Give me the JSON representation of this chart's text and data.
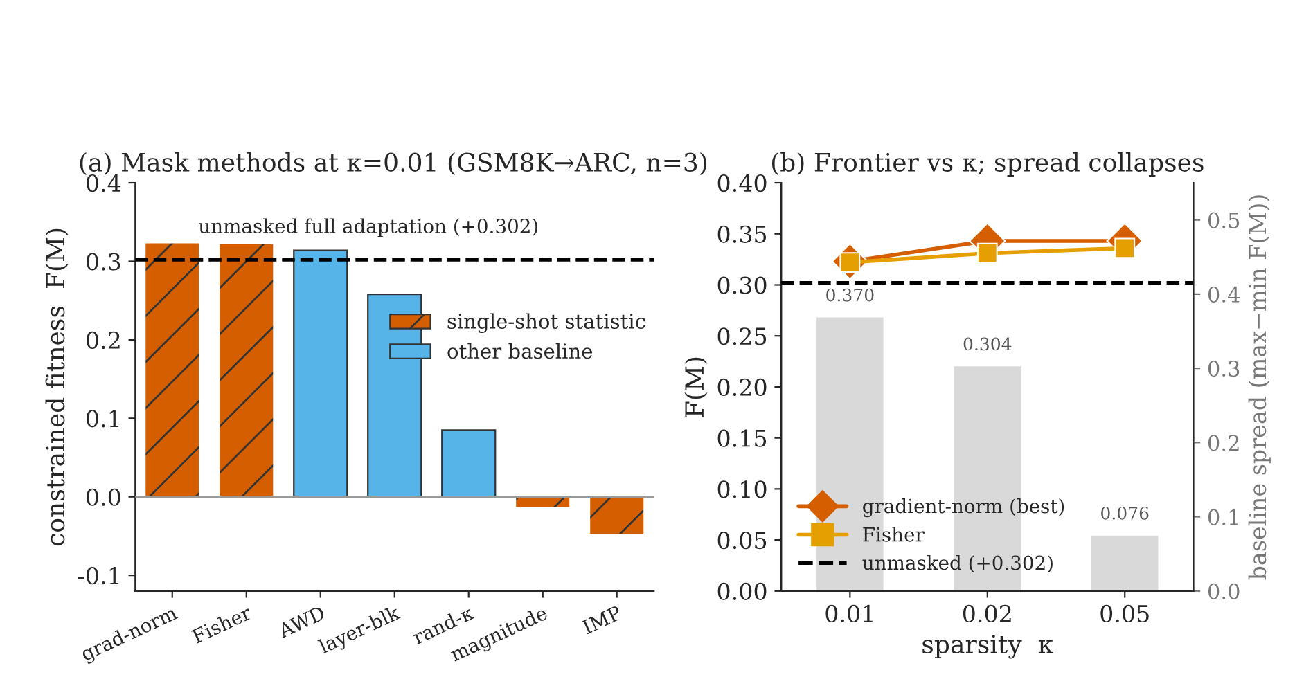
{
  "chart_data": [
    {
      "type": "bar",
      "title": "(a) Mask methods at κ=0.01 (GSM8K→ARC, n=3)",
      "ylabel": "constrained fitness  F(M)",
      "categories": [
        "grad-norm",
        "Fisher",
        "AWD",
        "layer-blk",
        "rand-κ",
        "magnitude",
        "IMP"
      ],
      "series": [
        {
          "name": "single-shot statistic",
          "color": "#d55e00",
          "values": [
            0.323,
            0.322,
            null,
            null,
            null,
            -0.013,
            -0.047
          ]
        },
        {
          "name": "other baseline",
          "color": "#56b4e9",
          "values": [
            null,
            null,
            0.314,
            0.258,
            0.085,
            null,
            null
          ]
        }
      ],
      "ylim": [
        -0.12,
        0.4
      ],
      "yticks": [
        -0.1,
        {
          "value": 0.0,
          "label": "0.0"
        },
        0.1,
        0.2,
        0.3,
        0.4
      ],
      "ref_lines": [
        {
          "axis": "y",
          "value": 0.302,
          "color": "#000000",
          "line_style": "dashed"
        }
      ],
      "annotations": [
        "unmasked full adaptation (+0.302)"
      ],
      "legend": "right",
      "grid": false
    },
    {
      "type": "line",
      "title": "(b) Frontier vs κ; spread collapses",
      "xlabel": "sparsity  κ",
      "ylabel": "F(M)",
      "y2label": "baseline spread (max−min F(M))",
      "categories": [
        "0.01",
        "0.02",
        "0.05"
      ],
      "series": [
        {
          "type": "bar",
          "axis": "y2",
          "color": "#d9d9d9",
          "values": [
            0.37,
            0.304,
            0.076
          ],
          "value_labels": [
            "0.370",
            "0.304",
            "0.076"
          ]
        },
        {
          "name": "gradient-norm (best)",
          "color": "#d55e00",
          "marker": "diamond",
          "values": [
            0.323,
            0.343,
            0.343
          ]
        },
        {
          "name": "Fisher",
          "color": "#e69f00",
          "marker": "square",
          "values": [
            0.322,
            0.331,
            0.336
          ]
        }
      ],
      "ylim": [
        0.0,
        0.4
      ],
      "yticks": [
        {
          "value": 0.0,
          "label": "0.00"
        },
        {
          "value": 0.05,
          "label": "0.05"
        },
        {
          "value": 0.1,
          "label": "0.10"
        },
        {
          "value": 0.15,
          "label": "0.15"
        },
        {
          "value": 0.2,
          "label": "0.20"
        },
        {
          "value": 0.25,
          "label": "0.25"
        },
        {
          "value": 0.3,
          "label": "0.30"
        },
        {
          "value": 0.35,
          "label": "0.35"
        },
        {
          "value": 0.4,
          "label": "0.40"
        }
      ],
      "y2lim": [
        0.0,
        0.55
      ],
      "y2ticks": [
        {
          "value": 0.0,
          "label": "0.0"
        },
        0.1,
        0.2,
        0.3,
        0.4,
        0.5
      ],
      "ref_lines": [
        {
          "axis": "y",
          "value": 0.302,
          "label": "unmasked (+0.302)",
          "color": "#000000",
          "line_style": "dashed"
        }
      ],
      "legend": "bottom left",
      "grid": false
    }
  ]
}
